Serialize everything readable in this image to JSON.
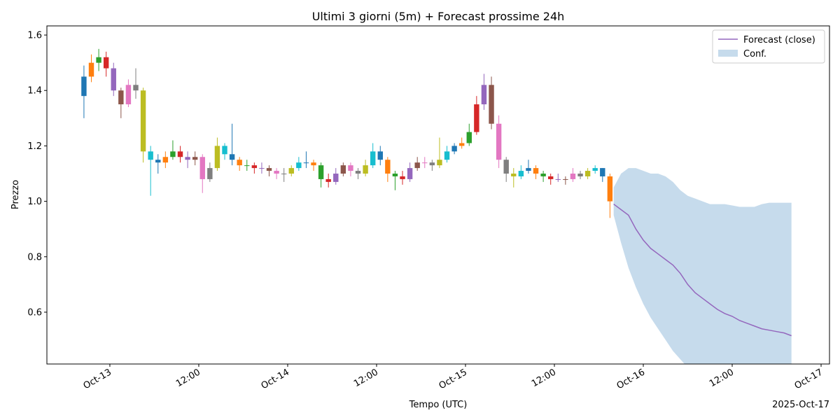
{
  "chart_data": {
    "type": "candlestick",
    "title": "Ultimi 3 giorni (5m) + Forecast prossime 24h",
    "xlabel": "Tempo (UTC)",
    "ylabel": "Prezzo",
    "x_offset_label": "2025-Oct-17",
    "legend": "upper right",
    "xlim": [
      "2025-10-12 15:30",
      "2025-10-17 01:08"
    ],
    "xticks": [
      {
        "value": "2025-10-13 00:00",
        "label": "Oct-13"
      },
      {
        "value": "2025-10-13 12:00",
        "label": "12:00"
      },
      {
        "value": "2025-10-14 00:00",
        "label": "Oct-14"
      },
      {
        "value": "2025-10-14 12:00",
        "label": "12:00"
      },
      {
        "value": "2025-10-15 00:00",
        "label": "Oct-15"
      },
      {
        "value": "2025-10-15 12:00",
        "label": "12:00"
      },
      {
        "value": "2025-10-16 00:00",
        "label": "Oct-16"
      },
      {
        "value": "2025-10-16 12:00",
        "label": "12:00"
      },
      {
        "value": "2025-10-17 00:00",
        "label": "Oct-17"
      }
    ],
    "ylim": [
      0.413,
      1.633
    ],
    "yticks": [
      0.6,
      0.8,
      {
        "value": 1,
        "label": "1.0"
      },
      1.2,
      1.4,
      1.6
    ],
    "candle_colors": [
      "#1f77b4",
      "#ff7f0e",
      "#2ca02c",
      "#d62728",
      "#9467bd",
      "#8c564b",
      "#e377c2",
      "#7f7f7f",
      "#bcbd22",
      "#17becf"
    ],
    "x": [
      "2025-10-12 20:00",
      "2025-10-12 21:00",
      "2025-10-12 22:00",
      "2025-10-12 23:00",
      "2025-10-13 00:00",
      "2025-10-13 01:00",
      "2025-10-13 02:00",
      "2025-10-13 03:00",
      "2025-10-13 04:00",
      "2025-10-13 05:00",
      "2025-10-13 06:00",
      "2025-10-13 07:00",
      "2025-10-13 08:00",
      "2025-10-13 09:00",
      "2025-10-13 10:00",
      "2025-10-13 11:00",
      "2025-10-13 12:00",
      "2025-10-13 13:00",
      "2025-10-13 14:00",
      "2025-10-13 15:00",
      "2025-10-13 16:00",
      "2025-10-13 17:00",
      "2025-10-13 18:00",
      "2025-10-13 19:00",
      "2025-10-13 20:00",
      "2025-10-13 21:00",
      "2025-10-13 22:00",
      "2025-10-13 23:00",
      "2025-10-14 00:00",
      "2025-10-14 01:00",
      "2025-10-14 02:00",
      "2025-10-14 03:00",
      "2025-10-14 04:00",
      "2025-10-14 05:00",
      "2025-10-14 06:00",
      "2025-10-14 07:00",
      "2025-10-14 08:00",
      "2025-10-14 09:00",
      "2025-10-14 10:00",
      "2025-10-14 11:00",
      "2025-10-14 12:00",
      "2025-10-14 13:00",
      "2025-10-14 14:00",
      "2025-10-14 15:00",
      "2025-10-14 16:00",
      "2025-10-14 17:00",
      "2025-10-14 18:00",
      "2025-10-14 19:00",
      "2025-10-14 20:00",
      "2025-10-14 21:00",
      "2025-10-14 22:00",
      "2025-10-14 23:00",
      "2025-10-15 00:00",
      "2025-10-15 01:00",
      "2025-10-15 02:00",
      "2025-10-15 03:00",
      "2025-10-15 04:00",
      "2025-10-15 05:00",
      "2025-10-15 06:00",
      "2025-10-15 07:00",
      "2025-10-15 08:00",
      "2025-10-15 09:00",
      "2025-10-15 10:00",
      "2025-10-15 11:00",
      "2025-10-15 12:00",
      "2025-10-15 13:00",
      "2025-10-15 14:00",
      "2025-10-15 15:00",
      "2025-10-15 16:00",
      "2025-10-15 17:00",
      "2025-10-15 18:00",
      "2025-10-15 19:00"
    ],
    "open": [
      1.38,
      1.45,
      1.5,
      1.52,
      1.48,
      1.4,
      1.35,
      1.42,
      1.4,
      1.18,
      1.15,
      1.14,
      1.16,
      1.18,
      1.16,
      1.15,
      1.16,
      1.08,
      1.12,
      1.2,
      1.17,
      1.15,
      1.13,
      1.13,
      1.12,
      1.12,
      1.11,
      1.1,
      1.1,
      1.12,
      1.14,
      1.14,
      1.13,
      1.08,
      1.07,
      1.1,
      1.13,
      1.11,
      1.1,
      1.13,
      1.18,
      1.15,
      1.1,
      1.09,
      1.08,
      1.12,
      1.14,
      1.14,
      1.13,
      1.15,
      1.18,
      1.2,
      1.21,
      1.25,
      1.35,
      1.42,
      1.28,
      1.15,
      1.1,
      1.09,
      1.11,
      1.12,
      1.1,
      1.09,
      1.08,
      1.08,
      1.08,
      1.1,
      1.09,
      1.11,
      1.12,
      1.09
    ],
    "high": [
      1.49,
      1.53,
      1.55,
      1.54,
      1.5,
      1.41,
      1.44,
      1.48,
      1.41,
      1.2,
      1.17,
      1.18,
      1.22,
      1.2,
      1.18,
      1.18,
      1.17,
      1.14,
      1.23,
      1.21,
      1.28,
      1.16,
      1.15,
      1.14,
      1.14,
      1.13,
      1.12,
      1.12,
      1.13,
      1.16,
      1.18,
      1.15,
      1.14,
      1.1,
      1.12,
      1.14,
      1.14,
      1.12,
      1.15,
      1.21,
      1.2,
      1.16,
      1.11,
      1.11,
      1.14,
      1.16,
      1.16,
      1.15,
      1.23,
      1.2,
      1.21,
      1.23,
      1.28,
      1.38,
      1.46,
      1.45,
      1.31,
      1.16,
      1.12,
      1.13,
      1.15,
      1.13,
      1.11,
      1.1,
      1.1,
      1.09,
      1.12,
      1.11,
      1.12,
      1.13,
      1.12,
      1.1
    ],
    "low": [
      1.3,
      1.43,
      1.47,
      1.45,
      1.38,
      1.3,
      1.34,
      1.37,
      1.14,
      1.02,
      1.1,
      1.12,
      1.15,
      1.14,
      1.12,
      1.13,
      1.03,
      1.07,
      1.11,
      1.15,
      1.13,
      1.11,
      1.11,
      1.1,
      1.1,
      1.09,
      1.08,
      1.07,
      1.09,
      1.11,
      1.12,
      1.11,
      1.05,
      1.05,
      1.06,
      1.09,
      1.09,
      1.08,
      1.09,
      1.12,
      1.13,
      1.07,
      1.04,
      1.06,
      1.07,
      1.11,
      1.12,
      1.11,
      1.12,
      1.14,
      1.17,
      1.19,
      1.2,
      1.24,
      1.33,
      1.26,
      1.12,
      1.07,
      1.05,
      1.08,
      1.1,
      1.08,
      1.07,
      1.06,
      1.07,
      1.06,
      1.07,
      1.08,
      1.08,
      1.1,
      1.07,
      0.94
    ],
    "close": [
      1.45,
      1.5,
      1.52,
      1.48,
      1.4,
      1.35,
      1.42,
      1.4,
      1.18,
      1.15,
      1.14,
      1.16,
      1.18,
      1.16,
      1.15,
      1.16,
      1.08,
      1.12,
      1.2,
      1.17,
      1.15,
      1.13,
      1.13,
      1.12,
      1.12,
      1.11,
      1.1,
      1.1,
      1.12,
      1.14,
      1.14,
      1.13,
      1.08,
      1.07,
      1.1,
      1.13,
      1.11,
      1.1,
      1.13,
      1.18,
      1.15,
      1.1,
      1.09,
      1.08,
      1.12,
      1.14,
      1.14,
      1.13,
      1.15,
      1.18,
      1.2,
      1.21,
      1.25,
      1.35,
      1.42,
      1.28,
      1.15,
      1.1,
      1.09,
      1.11,
      1.12,
      1.1,
      1.09,
      1.08,
      1.08,
      1.08,
      1.1,
      1.09,
      1.11,
      1.12,
      1.09,
      1.0
    ],
    "forecast": {
      "name": "Forecast (close)",
      "color": "#9467bd",
      "x": [
        "2025-10-15 20:00",
        "2025-10-15 21:00",
        "2025-10-15 22:00",
        "2025-10-15 23:00",
        "2025-10-16 00:00",
        "2025-10-16 01:00",
        "2025-10-16 02:00",
        "2025-10-16 03:00",
        "2025-10-16 04:00",
        "2025-10-16 05:00",
        "2025-10-16 06:00",
        "2025-10-16 07:00",
        "2025-10-16 08:00",
        "2025-10-16 09:00",
        "2025-10-16 10:00",
        "2025-10-16 11:00",
        "2025-10-16 12:00",
        "2025-10-16 13:00",
        "2025-10-16 14:00",
        "2025-10-16 15:00",
        "2025-10-16 16:00",
        "2025-10-16 17:00",
        "2025-10-16 18:00",
        "2025-10-16 19:00",
        "2025-10-16 20:00"
      ],
      "values": [
        0.99,
        0.97,
        0.95,
        0.9,
        0.86,
        0.83,
        0.81,
        0.79,
        0.77,
        0.74,
        0.7,
        0.67,
        0.65,
        0.63,
        0.61,
        0.595,
        0.585,
        0.57,
        0.56,
        0.55,
        0.54,
        0.535,
        0.53,
        0.525,
        0.515
      ]
    },
    "interval": {
      "name": "Conf.",
      "color": "#c6dbec",
      "upper": [
        1.05,
        1.1,
        1.12,
        1.12,
        1.11,
        1.1,
        1.1,
        1.09,
        1.07,
        1.04,
        1.02,
        1.01,
        1.0,
        0.99,
        0.99,
        0.99,
        0.985,
        0.98,
        0.98,
        0.98,
        0.99,
        0.995,
        0.995,
        0.995,
        0.995
      ],
      "lower": [
        0.95,
        0.85,
        0.76,
        0.69,
        0.63,
        0.58,
        0.54,
        0.5,
        0.46,
        0.43,
        0.4,
        0.38,
        0.36,
        0.34,
        0.32,
        0.3,
        0.28,
        0.27,
        0.26,
        0.25,
        0.24,
        0.23,
        0.22,
        0.21,
        0.2
      ]
    }
  }
}
